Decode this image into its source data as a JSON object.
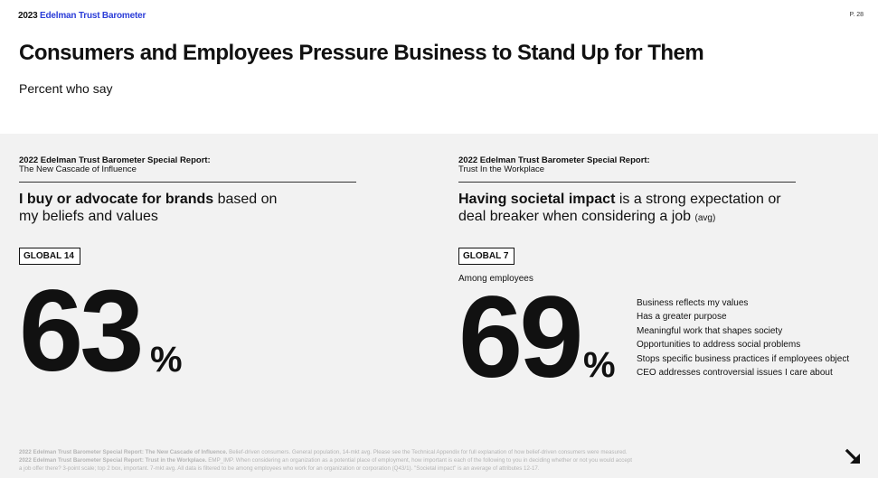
{
  "header": {
    "brand_year": "2023",
    "brand_name": "Edelman Trust Barometer",
    "page_number": "P. 28",
    "title": "Consumers and Employees Pressure Business to Stand Up for Them",
    "subtitle": "Percent who say"
  },
  "colors": {
    "brand_blue": "#2b3dd8",
    "panel_bg": "#f2f2f2",
    "text": "#111111",
    "footnote": "#b5b5b5"
  },
  "left": {
    "report_title": "2022 Edelman Trust Barometer Special Report:",
    "report_subtitle": "The New Cascade of Influence",
    "headline_bold": "I buy or advocate for brands",
    "headline_rest_1": " based on",
    "headline_rest_2": "my beliefs and values",
    "badge": "GLOBAL 14",
    "value": "63",
    "unit": "%"
  },
  "right": {
    "report_title": "2022 Edelman Trust Barometer Special Report:",
    "report_subtitle": "Trust In the Workplace",
    "headline_bold": "Having societal impact",
    "headline_rest_1": " is a strong expectation or",
    "headline_rest_2": "deal breaker when considering a job ",
    "headline_small": "(avg)",
    "badge": "GLOBAL 7",
    "among": "Among employees",
    "value": "69",
    "unit": "%",
    "attributes": [
      "Business reflects my values",
      "Has a greater purpose",
      "Meaningful work that shapes society",
      "Opportunities to address social problems",
      "Stops specific business practices if employees object",
      "CEO addresses controversial issues I care about"
    ]
  },
  "footnote": {
    "line1_bold": "2022 Edelman Trust Barometer Special Report: The New Cascade of Influence.",
    "line1_rest": " Belief-driven consumers. General population, 14-mkt avg. Please see the Technical Appendix for full explanation of how belief-driven consumers were measured.",
    "line2_bold": "2022 Edelman Trust Barometer Special Report: Trust in the Workplace.",
    "line2_rest": " EMP_IMP. When considering an organization as a potential place of employment, how important is each of the following to you in deciding whether or not you would accept",
    "line3": "a job offer there? 3-point scale; top 2 box, important. 7-mkt avg. All data is filtered to be among employees who work for an organization or corporation (Q43/1). \"Societal impact\" is an average of attributes 12-17."
  },
  "nav": {
    "next_icon": "arrow-down-right-icon"
  }
}
